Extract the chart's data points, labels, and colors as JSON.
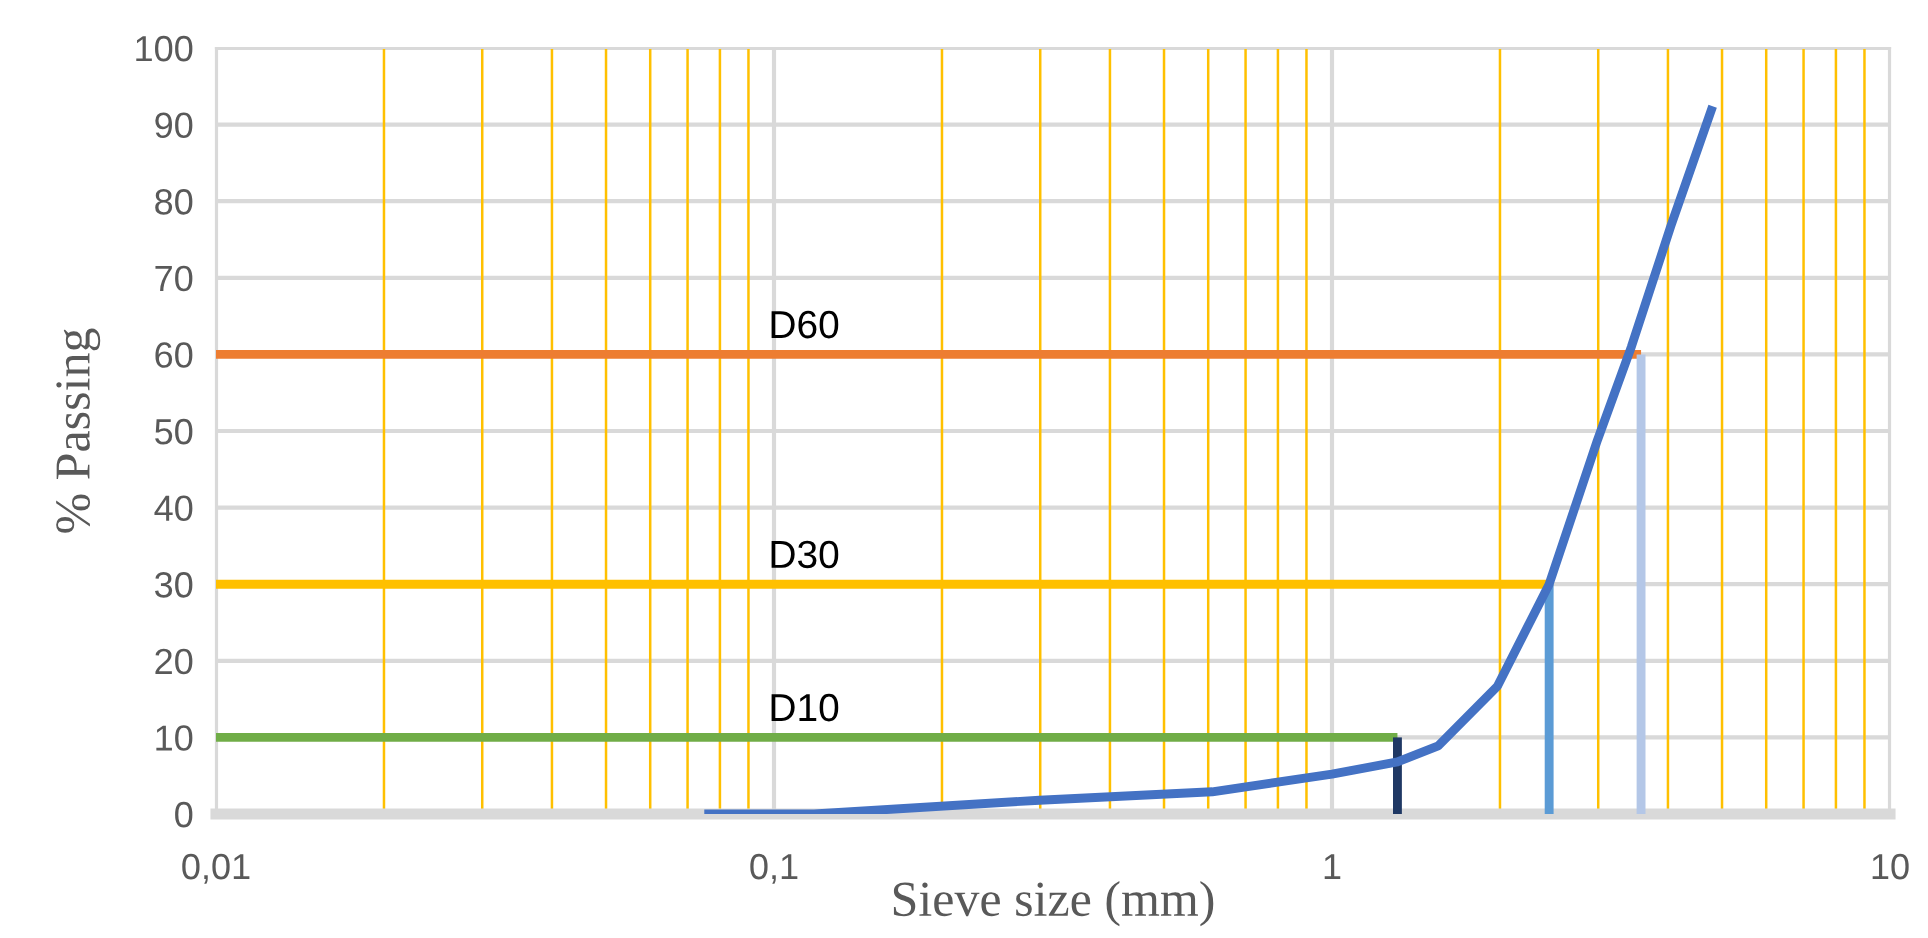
{
  "chart_data": {
    "type": "line",
    "xlabel": "Sieve size (mm)",
    "ylabel": "% Passing",
    "log": "x",
    "xlim": [
      0.01,
      10
    ],
    "xticks": [
      {
        "value": 0.01,
        "label": "0,01"
      },
      {
        "value": 0.1,
        "label": "0,1"
      },
      {
        "value": 1,
        "label": "1"
      },
      {
        "value": 10,
        "label": "10"
      }
    ],
    "ylim": [
      0,
      100
    ],
    "yticks": [
      0,
      10,
      20,
      30,
      40,
      50,
      60,
      70,
      80,
      90,
      100
    ],
    "grid": true,
    "marker": "none",
    "line_style": "solid",
    "series": [
      {
        "color": "#ed7d31",
        "x": [
          0.01,
          3.58
        ],
        "values": [
          60,
          60
        ]
      },
      {
        "color": "#ffc000",
        "x": [
          0.01,
          2.45
        ],
        "values": [
          30,
          30
        ]
      },
      {
        "color": "#70ad47",
        "x": [
          0.01,
          1.31
        ],
        "values": [
          10,
          10
        ]
      },
      {
        "color": "#1f3864",
        "x": [
          1.31,
          1.31
        ],
        "values": [
          0,
          10
        ]
      },
      {
        "color": "#5b9bd5",
        "x": [
          2.45,
          2.45
        ],
        "values": [
          0,
          30
        ]
      },
      {
        "color": "#b4c7e7",
        "x": [
          3.58,
          3.58
        ],
        "values": [
          0,
          60
        ]
      },
      {
        "color": "#4472c4",
        "x": [
          0.075,
          0.118,
          0.299,
          0.61,
          1,
          1.31,
          1.55,
          1.98,
          2.45,
          2.99,
          3.44,
          4.05,
          4.81
        ],
        "values": [
          0,
          0,
          1.8,
          2.9,
          5.2,
          6.8,
          8.9,
          16.7,
          30,
          48.8,
          61,
          76.8,
          92.4
        ]
      }
    ],
    "ref_lines": [
      {
        "axis": "x",
        "value": 0.02,
        "color": "#ffc000"
      },
      {
        "axis": "x",
        "value": 0.03,
        "color": "#ffc000"
      },
      {
        "axis": "x",
        "value": 0.04,
        "color": "#ffc000"
      },
      {
        "axis": "x",
        "value": 0.05,
        "color": "#ffc000"
      },
      {
        "axis": "x",
        "value": 0.06,
        "color": "#ffc000"
      },
      {
        "axis": "x",
        "value": 0.07,
        "color": "#ffc000"
      },
      {
        "axis": "x",
        "value": 0.08,
        "color": "#ffc000"
      },
      {
        "axis": "x",
        "value": 0.09,
        "color": "#ffc000"
      },
      {
        "axis": "x",
        "value": 0.2,
        "color": "#ffc000"
      },
      {
        "axis": "x",
        "value": 0.3,
        "color": "#ffc000"
      },
      {
        "axis": "x",
        "value": 0.4,
        "color": "#ffc000"
      },
      {
        "axis": "x",
        "value": 0.5,
        "color": "#ffc000"
      },
      {
        "axis": "x",
        "value": 0.6,
        "color": "#ffc000"
      },
      {
        "axis": "x",
        "value": 0.7,
        "color": "#ffc000"
      },
      {
        "axis": "x",
        "value": 0.8,
        "color": "#ffc000"
      },
      {
        "axis": "x",
        "value": 0.9,
        "color": "#ffc000"
      },
      {
        "axis": "x",
        "value": 2,
        "color": "#ffc000"
      },
      {
        "axis": "x",
        "value": 3,
        "color": "#ffc000"
      },
      {
        "axis": "x",
        "value": 4,
        "color": "#ffc000"
      },
      {
        "axis": "x",
        "value": 5,
        "color": "#ffc000"
      },
      {
        "axis": "x",
        "value": 6,
        "color": "#ffc000"
      },
      {
        "axis": "x",
        "value": 7,
        "color": "#ffc000"
      },
      {
        "axis": "x",
        "value": 8,
        "color": "#ffc000"
      },
      {
        "axis": "x",
        "value": 9,
        "color": "#ffc000"
      }
    ],
    "annotations": [
      {
        "text": "D60",
        "y": 60
      },
      {
        "text": "D30",
        "y": 30
      },
      {
        "text": "D10",
        "y": 10
      }
    ]
  }
}
